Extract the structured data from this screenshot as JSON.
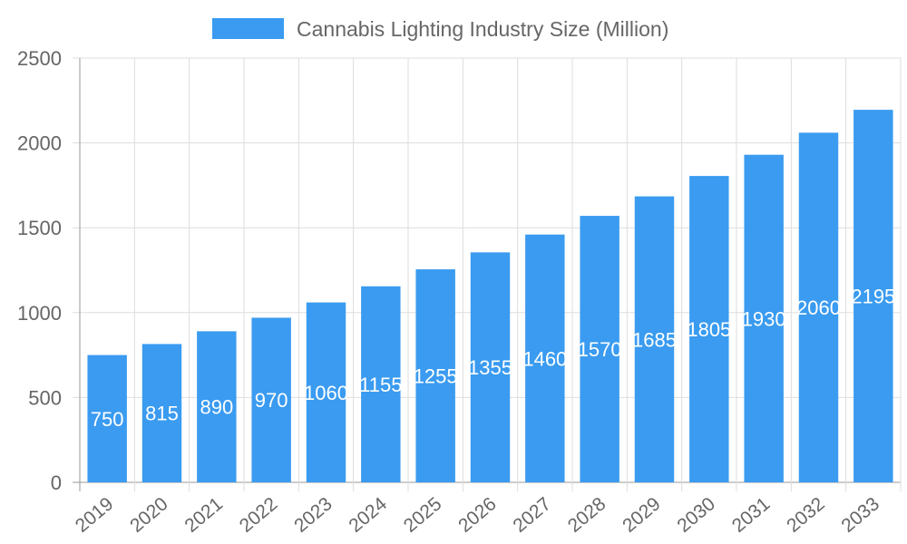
{
  "chart_data": {
    "type": "bar",
    "legend": {
      "label": "Cannabis Lighting Industry Size (Million)",
      "placement": "top"
    },
    "categories": [
      "2019",
      "2020",
      "2021",
      "2022",
      "2023",
      "2024",
      "2025",
      "2026",
      "2027",
      "2028",
      "2029",
      "2030",
      "2031",
      "2032",
      "2033"
    ],
    "series": [
      {
        "name": "Cannabis Lighting Industry Size (Million)",
        "values": [
          750,
          815,
          890,
          970,
          1060,
          1155,
          1255,
          1355,
          1460,
          1570,
          1685,
          1805,
          1930,
          2060,
          2195
        ]
      }
    ],
    "ylim": [
      0,
      2500
    ],
    "yticks": [
      0,
      500,
      1000,
      1500,
      2000,
      2500
    ],
    "grid": true,
    "data_labels": true,
    "colors": {
      "bar": "#3a9bf0",
      "grid": "#dddddd",
      "axis": "#999999",
      "text": "#666666"
    }
  }
}
